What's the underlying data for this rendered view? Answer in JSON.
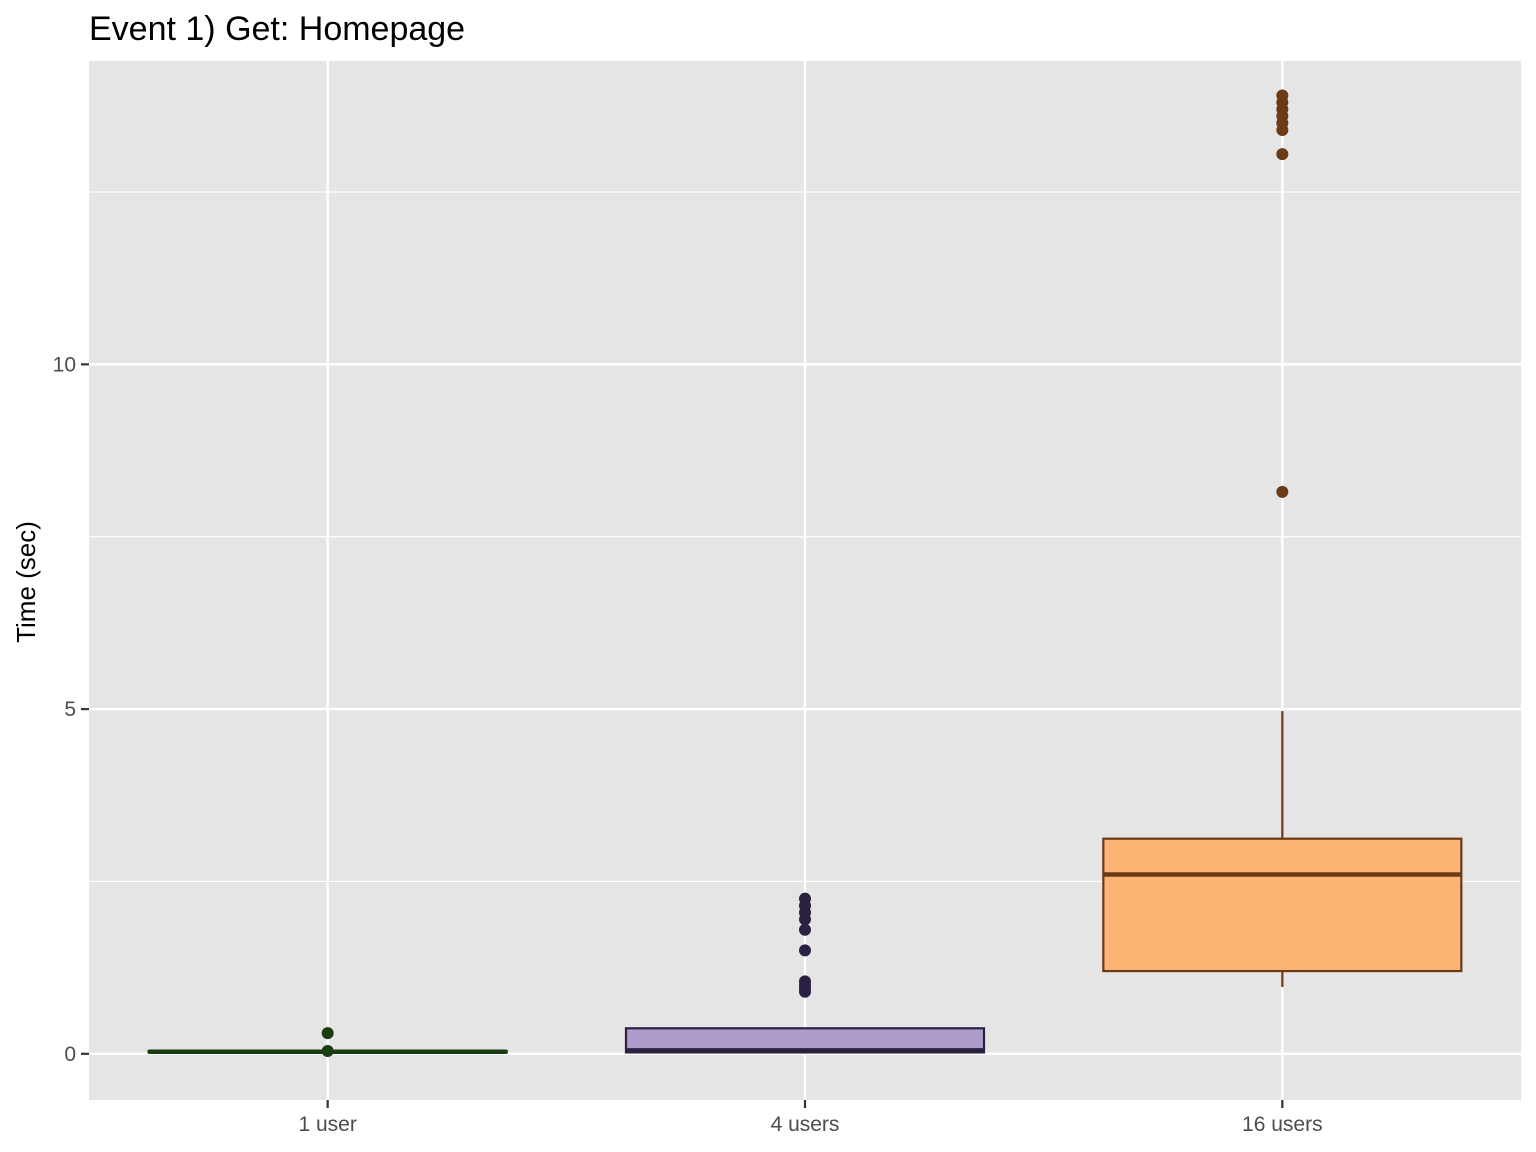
{
  "chart_data": {
    "type": "boxplot",
    "title": "Event 1) Get: Homepage",
    "xlabel": "",
    "ylabel": "Time (sec)",
    "ylim": [
      -0.67,
      14.4
    ],
    "yticks": [
      0,
      5,
      10
    ],
    "categories": [
      "1 user",
      "4 users",
      "16 users"
    ],
    "grid": true,
    "background": "#e5e5e5",
    "boxes": [
      {
        "category": "1 user",
        "fill": "#1f5c1f",
        "stroke": "#1a3d10",
        "min": 0.02,
        "q1": 0.02,
        "median": 0.03,
        "q3": 0.04,
        "max": 0.05,
        "outliers": [
          0.3,
          0.04
        ]
      },
      {
        "category": "4 users",
        "fill": "#ab9cc9",
        "stroke": "#2a2140",
        "min": 0.02,
        "q1": 0.02,
        "median": 0.05,
        "q3": 0.37,
        "max": 0.37,
        "outliers": [
          0.9,
          0.95,
          1.0,
          1.05,
          1.5,
          1.8,
          1.95,
          2.05,
          2.15,
          2.25
        ]
      },
      {
        "category": "16 users",
        "fill": "#fbb473",
        "stroke": "#6b3a17",
        "min": 0.97,
        "q1": 1.2,
        "median": 2.6,
        "q3": 3.12,
        "max": 4.97,
        "outliers": [
          8.15,
          13.05,
          13.4,
          13.5,
          13.6,
          13.7,
          13.8,
          13.9
        ]
      }
    ]
  }
}
